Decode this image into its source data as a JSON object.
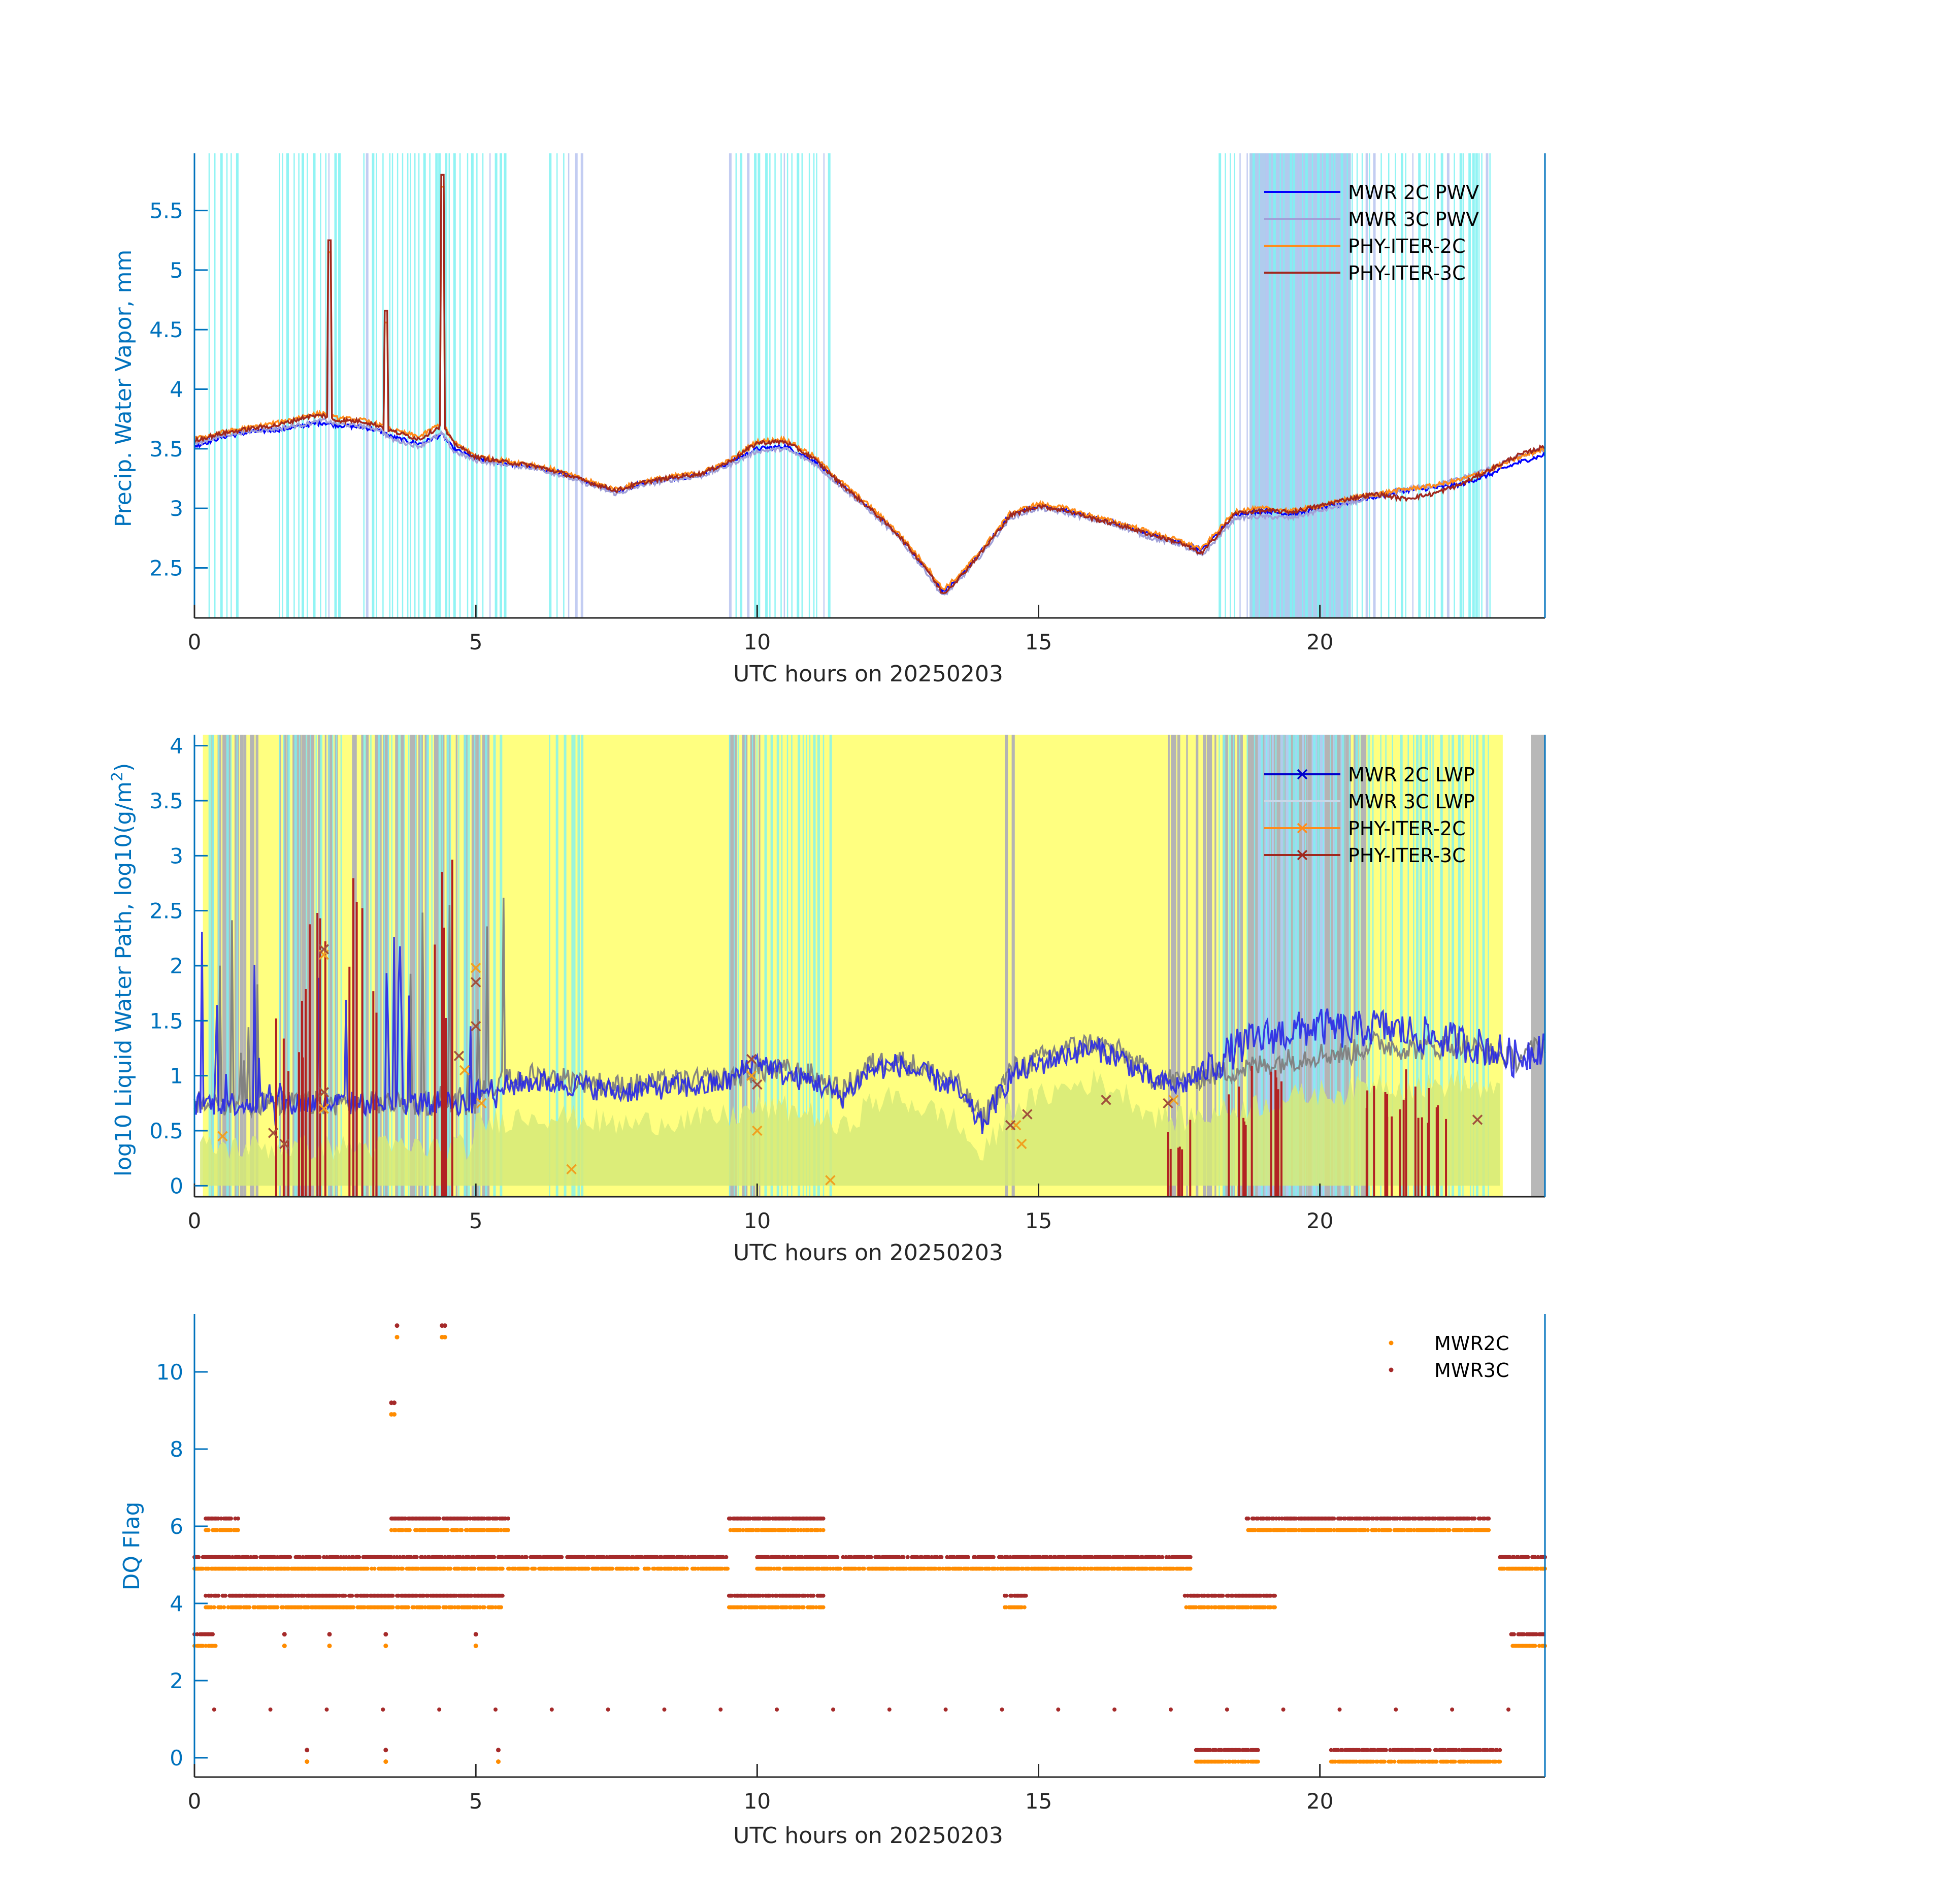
{
  "chart_data": [
    {
      "type": "line",
      "xlabel": "UTC hours on 20250203",
      "ylabel": "Precip. Water Vapor, mm",
      "xlim": [
        0,
        24
      ],
      "ylim": [
        2.08,
        5.98
      ],
      "xticks": [
        "0",
        "5",
        "10",
        "15",
        "20"
      ],
      "yticks": [
        "2.5",
        "3",
        "3.5",
        "4",
        "4.5",
        "5",
        "5.5"
      ],
      "legend": {
        "placement": "top-right",
        "entries": [
          "MWR 2C PWV",
          "MWR 3C PWV",
          "PHY-ITER-2C",
          "PHY-ITER-3C"
        ]
      },
      "x": [
        0,
        0.5,
        1,
        1.5,
        2,
        2.3,
        2.5,
        3,
        3.3,
        3.5,
        4,
        4.4,
        4.6,
        5,
        5.5,
        6,
        6.5,
        7,
        7.5,
        8,
        8.5,
        9,
        9.5,
        10,
        10.5,
        11,
        11.5,
        12,
        12.5,
        13,
        13.3,
        13.6,
        14,
        14.5,
        15,
        15.5,
        16,
        16.5,
        17,
        17.5,
        17.9,
        18.5,
        19,
        19.5,
        20,
        20.5,
        21,
        21.5,
        22,
        22.5,
        23,
        23.5,
        24
      ],
      "series": [
        {
          "name": "MWR 2C PWV",
          "color": "#0000FF",
          "values": [
            3.52,
            3.6,
            3.64,
            3.66,
            3.7,
            3.72,
            3.7,
            3.68,
            3.65,
            3.6,
            3.54,
            3.62,
            3.5,
            3.42,
            3.38,
            3.35,
            3.3,
            3.22,
            3.14,
            3.22,
            3.25,
            3.28,
            3.38,
            3.5,
            3.52,
            3.4,
            3.2,
            3.0,
            2.78,
            2.5,
            2.3,
            2.42,
            2.65,
            2.95,
            3.02,
            2.98,
            2.92,
            2.86,
            2.78,
            2.72,
            2.65,
            2.95,
            2.98,
            2.95,
            3.0,
            3.05,
            3.1,
            3.15,
            3.17,
            3.2,
            3.28,
            3.38,
            3.45
          ]
        },
        {
          "name": "MWR 3C PWV",
          "color": "#A0A0D8",
          "values": [
            3.54,
            3.61,
            3.65,
            3.67,
            3.71,
            3.74,
            3.71,
            3.69,
            3.66,
            3.58,
            3.52,
            3.63,
            3.48,
            3.4,
            3.37,
            3.34,
            3.28,
            3.2,
            3.12,
            3.2,
            3.24,
            3.27,
            3.36,
            3.48,
            3.5,
            3.38,
            3.18,
            2.98,
            2.76,
            2.47,
            2.26,
            2.4,
            2.62,
            2.92,
            3.0,
            2.96,
            2.9,
            2.84,
            2.75,
            2.7,
            2.6,
            2.92,
            2.93,
            2.92,
            2.98,
            3.04,
            3.1,
            3.16,
            3.19,
            3.25,
            3.33,
            3.43,
            3.5
          ]
        },
        {
          "name": "PHY-ITER-2C",
          "color": "#FF8C1A",
          "values": [
            3.58,
            3.64,
            3.68,
            3.72,
            3.78,
            3.8,
            3.76,
            3.74,
            3.7,
            3.66,
            3.6,
            3.72,
            3.56,
            3.44,
            3.4,
            3.37,
            3.31,
            3.23,
            3.16,
            3.23,
            3.27,
            3.3,
            3.4,
            3.56,
            3.58,
            3.44,
            3.22,
            3.02,
            2.8,
            2.52,
            2.32,
            2.44,
            2.66,
            2.96,
            3.04,
            3.0,
            2.93,
            2.87,
            2.8,
            2.73,
            2.66,
            2.98,
            3.0,
            2.98,
            3.02,
            3.08,
            3.12,
            3.16,
            3.19,
            3.24,
            3.32,
            3.42,
            3.5
          ]
        },
        {
          "name": "PHY-ITER-3C",
          "color": "#A0281E",
          "values": [
            3.57,
            3.63,
            3.67,
            3.7,
            3.77,
            3.78,
            3.74,
            3.73,
            3.69,
            3.65,
            3.58,
            3.7,
            3.55,
            3.43,
            3.39,
            3.36,
            3.3,
            3.22,
            3.15,
            3.22,
            3.26,
            3.29,
            3.39,
            3.55,
            3.56,
            3.42,
            3.2,
            3.0,
            2.78,
            2.5,
            2.28,
            2.42,
            2.64,
            2.94,
            3.02,
            2.98,
            2.91,
            2.85,
            2.78,
            2.71,
            2.62,
            2.96,
            2.98,
            2.97,
            3.02,
            3.08,
            3.12,
            3.08,
            3.12,
            3.2,
            3.32,
            3.44,
            3.52
          ]
        }
      ],
      "spikes": [
        {
          "x": 2.4,
          "y": 5.25
        },
        {
          "x": 3.4,
          "y": 4.66
        },
        {
          "x": 4.4,
          "y": 5.8
        }
      ]
    },
    {
      "type": "line",
      "xlabel": "UTC hours on 20250203",
      "ylabel": "log10 Liquid Water Path, log10(g/m^2)",
      "ylabel_main": "log10 Liquid Water Path, log10(g/m",
      "ylabel_sup": "2",
      "ylabel_end": ")",
      "xlim": [
        0,
        24
      ],
      "ylim": [
        -0.1,
        4.1
      ],
      "xticks": [
        "0",
        "5",
        "10",
        "15",
        "20"
      ],
      "yticks": [
        "0",
        "0.5",
        "1",
        "1.5",
        "2",
        "2.5",
        "3",
        "3.5",
        "4"
      ],
      "legend": {
        "placement": "top-right",
        "entries": [
          "MWR 2C LWP",
          "MWR 3C LWP",
          "PHY-ITER-2C",
          "PHY-ITER-3C"
        ]
      },
      "x": [
        5,
        5.5,
        6,
        6.5,
        7,
        7.5,
        8,
        8.5,
        9,
        9.5,
        10,
        10.5,
        11,
        11.5,
        12,
        12.5,
        13,
        13.5,
        14,
        14.5,
        15,
        15.5,
        16,
        16.5,
        17,
        17.5,
        18,
        18.5,
        19,
        19.5,
        20,
        20.5,
        21,
        21.5,
        22,
        22.5,
        23,
        23.5,
        24
      ],
      "series": [
        {
          "name": "MWR 3C LWP",
          "color": "#808080",
          "values": [
            0.9,
            0.95,
            1.0,
            0.98,
            0.95,
            0.9,
            0.92,
            0.95,
            0.95,
            0.98,
            1.05,
            1.05,
            1.0,
            0.85,
            1.1,
            1.15,
            1.05,
            0.95,
            0.6,
            1.05,
            1.15,
            1.25,
            1.3,
            1.2,
            1.0,
            0.95,
            1.0,
            1.05,
            1.1,
            1.15,
            1.2,
            1.2,
            1.3,
            1.25,
            1.25,
            1.3,
            1.2,
            1.15,
            1.3
          ]
        },
        {
          "name": "MWR 2C LWP",
          "color": "#2828E6",
          "values": [
            0.85,
            0.9,
            0.95,
            0.93,
            0.9,
            0.85,
            0.88,
            0.9,
            0.9,
            0.95,
            1.15,
            1.0,
            0.95,
            0.8,
            1.05,
            1.1,
            1.0,
            0.9,
            0.55,
            1.0,
            1.1,
            1.2,
            1.25,
            1.15,
            0.95,
            0.9,
            1.05,
            1.25,
            1.35,
            1.4,
            1.45,
            1.4,
            1.45,
            1.4,
            1.35,
            1.3,
            1.25,
            1.15,
            1.3
          ]
        }
      ],
      "markers_2c": [
        [
          0.5,
          0.45
        ],
        [
          2.3,
          2.1
        ],
        [
          2.3,
          0.7
        ],
        [
          4.8,
          1.05
        ],
        [
          5.0,
          1.98
        ],
        [
          5.1,
          0.75
        ],
        [
          6.7,
          0.15
        ],
        [
          9.9,
          1.0
        ],
        [
          10.0,
          0.5
        ],
        [
          11.3,
          0.05
        ],
        [
          14.6,
          0.55
        ],
        [
          14.7,
          0.38
        ],
        [
          17.4,
          0.78
        ]
      ],
      "markers_3c": [
        [
          1.4,
          0.48
        ],
        [
          1.6,
          0.38
        ],
        [
          2.3,
          0.85
        ],
        [
          2.3,
          2.15
        ],
        [
          4.7,
          1.18
        ],
        [
          5.0,
          1.85
        ],
        [
          5.0,
          1.45
        ],
        [
          9.9,
          1.15
        ],
        [
          10.0,
          0.92
        ],
        [
          14.5,
          0.55
        ],
        [
          14.8,
          0.65
        ],
        [
          16.2,
          0.78
        ],
        [
          17.3,
          0.75
        ],
        [
          22.8,
          0.6
        ]
      ],
      "background_color": "#FFFF80"
    },
    {
      "type": "scatter",
      "xlabel": "UTC hours on 20250203",
      "ylabel": "DQ Flag",
      "xlim": [
        0,
        24
      ],
      "ylim": [
        -0.5,
        11.5
      ],
      "xticks": [
        "0",
        "5",
        "10",
        "15",
        "20"
      ],
      "yticks": [
        "0",
        "2",
        "4",
        "6",
        "8",
        "10"
      ],
      "legend": {
        "placement": "top-right",
        "entries": [
          "MWR2C",
          "MWR3C"
        ]
      },
      "series": [
        {
          "name": "MWR2C",
          "color": "#FF8C00",
          "offset": -0.1
        },
        {
          "name": "MWR3C",
          "color": "#A52A2A",
          "offset": 0.2
        }
      ],
      "bands": [
        {
          "y": 5,
          "ranges": [
            [
              0,
              9.5
            ],
            [
              10.0,
              17.7
            ],
            [
              23.2,
              24
            ]
          ]
        },
        {
          "y": 4,
          "ranges": [
            [
              0.2,
              5.5
            ],
            [
              9.5,
              11.2
            ],
            [
              14.4,
              14.8
            ],
            [
              17.6,
              19.2
            ]
          ]
        },
        {
          "y": 6,
          "ranges": [
            [
              0.2,
              0.8
            ],
            [
              3.5,
              5.6
            ],
            [
              9.5,
              11.2
            ],
            [
              18.7,
              23.0
            ]
          ]
        },
        {
          "y": 0,
          "ranges": [
            [
              17.8,
              18.9
            ],
            [
              20.2,
              23.2
            ]
          ]
        },
        {
          "y": 3,
          "ranges": [
            [
              0,
              0.4
            ],
            [
              23.4,
              24
            ]
          ]
        }
      ],
      "isolated": [
        {
          "x": 3.5,
          "y": 9
        },
        {
          "x": 3.55,
          "y": 9
        },
        {
          "x": 3.6,
          "y": 11
        },
        {
          "x": 4.4,
          "y": 11
        },
        {
          "x": 4.45,
          "y": 11
        },
        {
          "x": 2.0,
          "y": 0
        },
        {
          "x": 3.4,
          "y": 0
        },
        {
          "x": 5.4,
          "y": 0
        },
        {
          "x": 5.0,
          "y": 3
        },
        {
          "x": 1.6,
          "y": 3
        },
        {
          "x": 2.4,
          "y": 3
        },
        {
          "x": 3.4,
          "y": 3
        }
      ]
    }
  ]
}
